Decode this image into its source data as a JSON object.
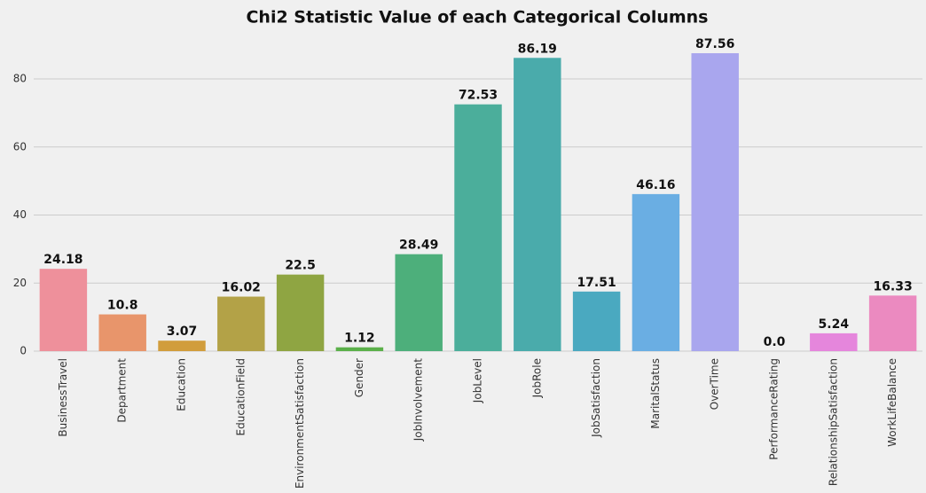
{
  "chart_data": {
    "type": "bar",
    "title": "Chi2 Statistic Value of each Categorical Columns",
    "categories": [
      "BusinessTravel",
      "Department",
      "Education",
      "EducationField",
      "EnvironmentSatisfaction",
      "Gender",
      "JobInvolvement",
      "JobLevel",
      "JobRole",
      "JobSatisfaction",
      "MaritalStatus",
      "OverTime",
      "PerformanceRating",
      "RelationshipSatisfaction",
      "WorkLifeBalance"
    ],
    "values": [
      24.18,
      10.8,
      3.07,
      16.02,
      22.5,
      1.12,
      28.49,
      72.53,
      86.19,
      17.51,
      46.16,
      87.56,
      0.0,
      5.24,
      16.33
    ],
    "value_labels": [
      "24.18",
      "10.8",
      "3.07",
      "16.02",
      "22.5",
      "1.12",
      "28.49",
      "72.53",
      "86.19",
      "17.51",
      "46.16",
      "87.56",
      "0.0",
      "5.24",
      "16.33"
    ],
    "colors": [
      "#ee909b",
      "#e8956b",
      "#d19d3c",
      "#b3a247",
      "#8fa542",
      "#5bb04a",
      "#4daf7b",
      "#4bae9b",
      "#4aabab",
      "#4aa9c0",
      "#6aaee3",
      "#a9a6ee",
      "#c99de8",
      "#e586dc",
      "#eb8ac0"
    ],
    "ylim": [
      0,
      94
    ],
    "yticks": [
      0,
      20,
      40,
      60,
      80
    ],
    "grid": true
  }
}
